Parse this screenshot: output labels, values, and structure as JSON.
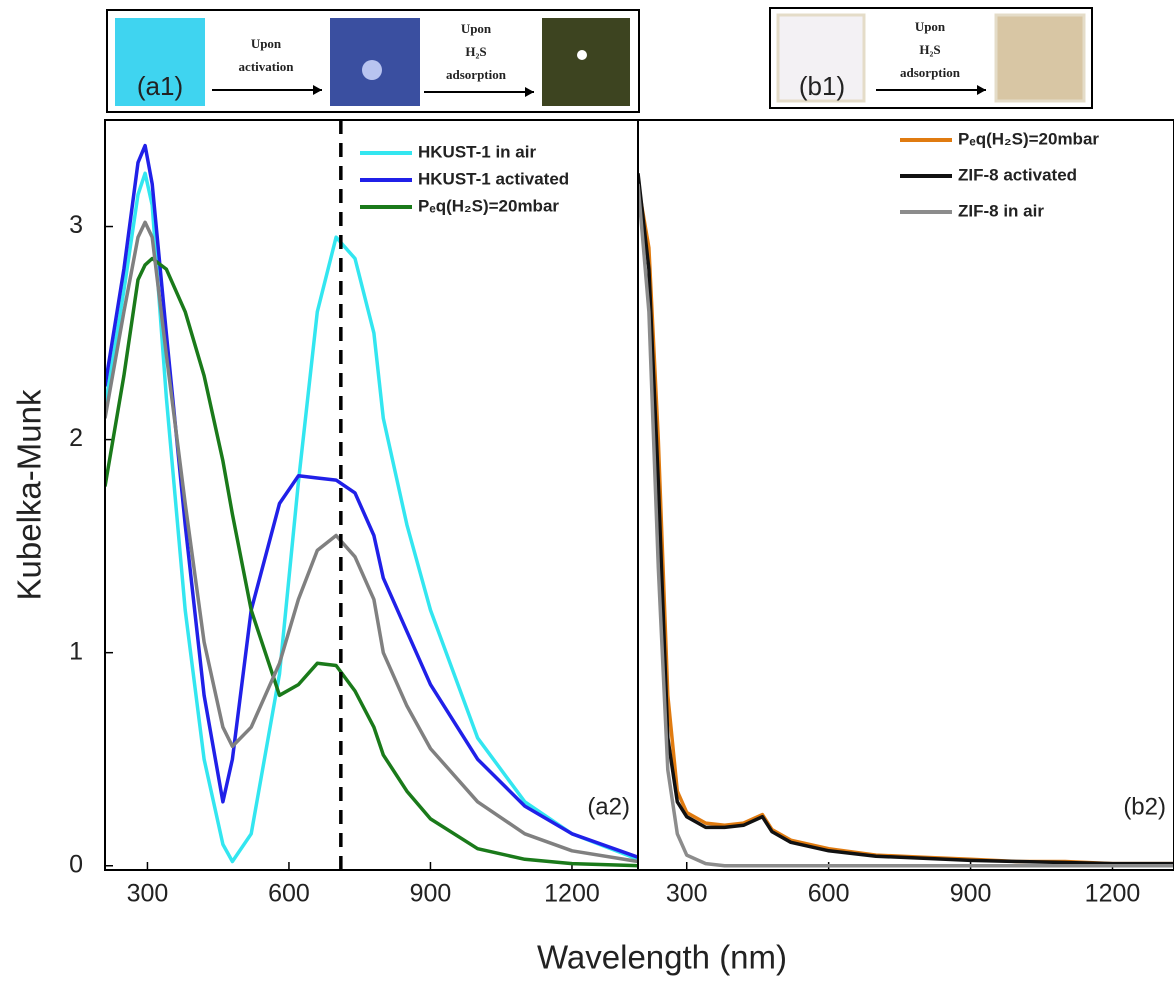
{
  "panel_insets": [
    {
      "label": "(a1)",
      "steps": [
        [
          "Upon",
          "activation"
        ],
        [
          "Upon",
          "H₂S",
          "adsorption"
        ]
      ]
    },
    {
      "label": "(b1)",
      "steps": [
        [
          "Upon",
          "H₂S",
          "adsorption"
        ]
      ]
    }
  ],
  "chart_data": [
    {
      "type": "line",
      "ylabel": "Kubelka-Munk",
      "xlabel": "Wavelength (nm)",
      "panel_label": "(a2)",
      "xlim": [
        210,
        1340
      ],
      "ylim": [
        -0.02,
        3.5
      ],
      "xticks": [
        300,
        600,
        900,
        1200
      ],
      "yticks": [
        0,
        1,
        2,
        3
      ],
      "vline": 710,
      "legend": "upper right",
      "x": [
        210,
        250,
        280,
        295,
        310,
        340,
        380,
        420,
        460,
        480,
        520,
        580,
        620,
        660,
        700,
        740,
        780,
        800,
        850,
        900,
        1000,
        1100,
        1200,
        1340
      ],
      "series": [
        {
          "name": "HKUST-1 in air",
          "color": "#33e6f0",
          "values": [
            2.15,
            2.7,
            3.15,
            3.25,
            3.1,
            2.2,
            1.2,
            0.5,
            0.1,
            0.02,
            0.15,
            0.9,
            1.8,
            2.6,
            2.95,
            2.85,
            2.5,
            2.1,
            1.6,
            1.2,
            0.6,
            0.3,
            0.15,
            0.03
          ]
        },
        {
          "name": "HKUST-1 activated",
          "color": "#2020e8",
          "values": [
            2.25,
            2.8,
            3.3,
            3.38,
            3.2,
            2.5,
            1.6,
            0.8,
            0.3,
            0.5,
            1.2,
            1.7,
            1.83,
            1.82,
            1.81,
            1.75,
            1.55,
            1.35,
            1.1,
            0.85,
            0.5,
            0.28,
            0.15,
            0.04
          ]
        },
        {
          "name": "Pₑq(H₂S)=20mbar",
          "color": "#1a7a1a",
          "values": [
            1.78,
            2.3,
            2.75,
            2.82,
            2.85,
            2.8,
            2.6,
            2.3,
            1.9,
            1.65,
            1.2,
            0.8,
            0.85,
            0.95,
            0.94,
            0.82,
            0.65,
            0.52,
            0.35,
            0.22,
            0.08,
            0.03,
            0.01,
            0.0
          ]
        },
        {
          "color": "#808080",
          "values": [
            2.1,
            2.6,
            2.95,
            3.02,
            2.95,
            2.4,
            1.7,
            1.05,
            0.65,
            0.56,
            0.65,
            0.95,
            1.25,
            1.48,
            1.55,
            1.45,
            1.25,
            1.0,
            0.75,
            0.55,
            0.3,
            0.15,
            0.07,
            0.02
          ]
        }
      ]
    },
    {
      "type": "line",
      "panel_label": "(b2)",
      "legend": "upper right",
      "xlim": [
        197,
        1330
      ],
      "ylim": [
        -0.02,
        3.5
      ],
      "xticks": [
        300,
        600,
        900,
        1200
      ],
      "x": [
        197,
        220,
        240,
        260,
        280,
        300,
        340,
        380,
        420,
        460,
        480,
        520,
        600,
        700,
        800,
        900,
        1000,
        1100,
        1200,
        1330
      ],
      "series": [
        {
          "name": "Pₑq(H₂S)=20mbar",
          "color": "#e07b10",
          "values": [
            3.2,
            2.9,
            2.0,
            0.8,
            0.35,
            0.25,
            0.2,
            0.19,
            0.2,
            0.24,
            0.17,
            0.12,
            0.08,
            0.05,
            0.04,
            0.03,
            0.02,
            0.02,
            0.01,
            0.01
          ]
        },
        {
          "name": "ZIF-8 activated",
          "color": "#111111",
          "values": [
            3.25,
            2.8,
            1.8,
            0.6,
            0.3,
            0.23,
            0.18,
            0.18,
            0.19,
            0.23,
            0.16,
            0.11,
            0.07,
            0.045,
            0.035,
            0.025,
            0.02,
            0.015,
            0.01,
            0.01
          ]
        },
        {
          "name": "ZIF-8 in air",
          "color": "#8c8c8c",
          "values": [
            3.2,
            2.6,
            1.4,
            0.45,
            0.15,
            0.05,
            0.01,
            0,
            0,
            0,
            0,
            0,
            0,
            0,
            0,
            0,
            0,
            0,
            0,
            0
          ]
        }
      ]
    }
  ]
}
